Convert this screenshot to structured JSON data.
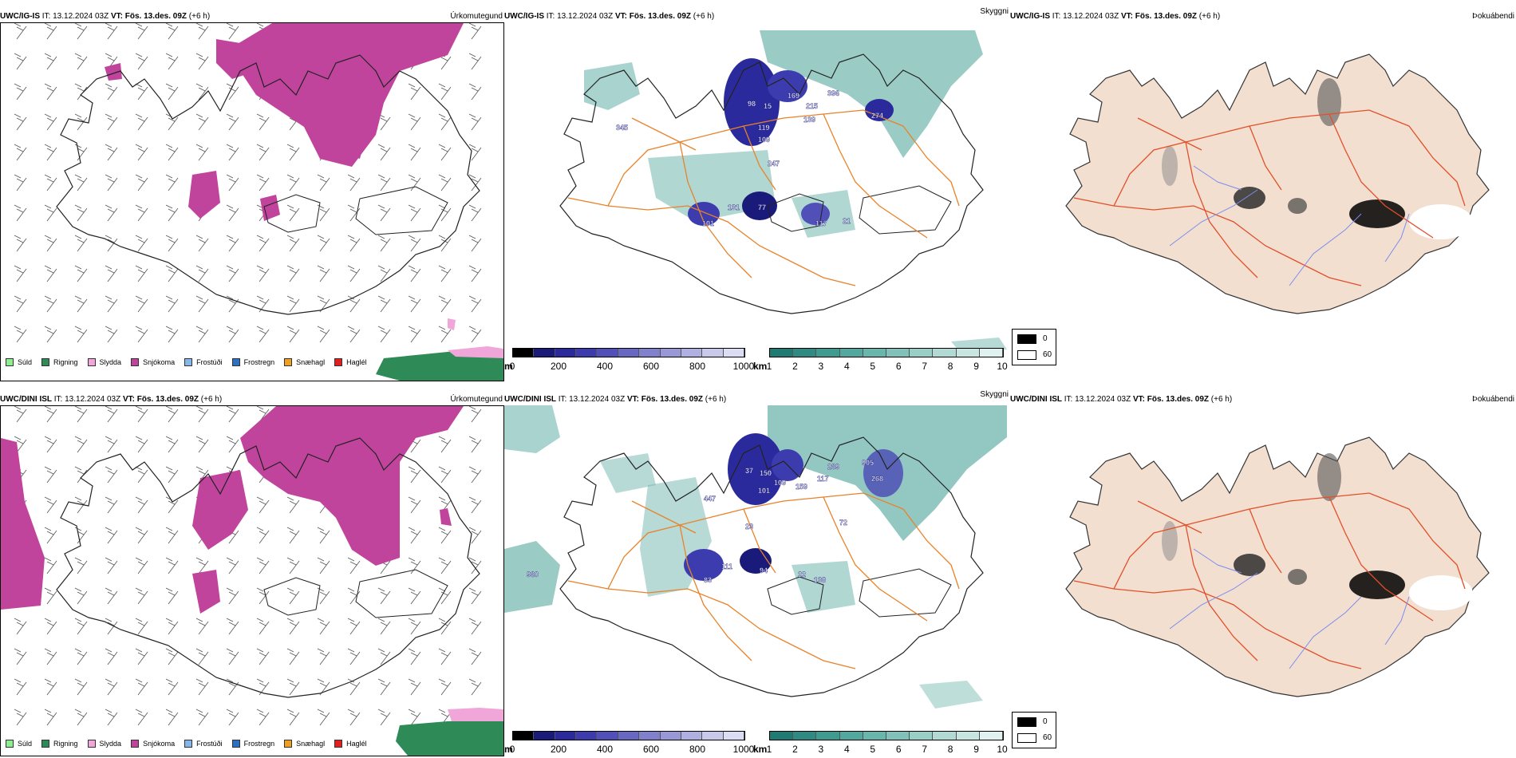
{
  "rows": [
    {
      "model": "UWC/IG-IS",
      "it_label": "IT:",
      "it_value": "13.12.2024 03Z",
      "vt_label": "VT:",
      "vt_value": "Fös. 13.des. 09Z",
      "offset": "(+6 h)"
    },
    {
      "model": "UWC/DINI ISL",
      "it_label": "IT:",
      "it_value": "13.12.2024 03Z",
      "vt_label": "VT:",
      "vt_value": "Fös. 13.des. 09Z",
      "offset": "(+6 h)"
    }
  ],
  "panel_titles": {
    "precip_type": "Úrkomutegund",
    "cloud": "Skyggni",
    "fog": "Þokuábendi"
  },
  "precip_legend": [
    {
      "label": "Súld",
      "color": "#90ee90"
    },
    {
      "label": "Rigning",
      "color": "#2e8b57"
    },
    {
      "label": "Slydda",
      "color": "#f0a6d8"
    },
    {
      "label": "Snjókoma",
      "color": "#c0449c"
    },
    {
      "label": "Frostúði",
      "color": "#87b6e8"
    },
    {
      "label": "Frostregn",
      "color": "#2f6fc0"
    },
    {
      "label": "Snæhagl",
      "color": "#f0a020"
    },
    {
      "label": "Haglél",
      "color": "#e02020"
    }
  ],
  "cloud_base_scale": {
    "unit": "m",
    "ticks": [
      "0",
      "200",
      "400",
      "600",
      "800",
      "1000"
    ],
    "colors": [
      "#000000",
      "#1a1a7a",
      "#2a2a9c",
      "#3c3cae",
      "#5050b8",
      "#6868c2",
      "#8080cc",
      "#9898d6",
      "#b0b0e0",
      "#c8c8ea",
      "#dcdcf4"
    ]
  },
  "visibility_scale": {
    "unit": "km",
    "ticks": [
      "1",
      "2",
      "3",
      "4",
      "5",
      "6",
      "7",
      "8",
      "9",
      "10"
    ],
    "colors": [
      "#1f7a73",
      "#2e8a82",
      "#3f9a90",
      "#52a89e",
      "#68b6ac",
      "#80c2b9",
      "#98cec6",
      "#b0dad3",
      "#c8e6e0",
      "#e0f2ef"
    ]
  },
  "fog_scale": {
    "high": "0",
    "low": "60",
    "high_color": "#000000",
    "low_color": "#ffffff"
  },
  "cloud_labels": [
    [
      "345",
      "98",
      "15",
      "169",
      "215",
      "396",
      "274",
      "139",
      "119",
      "109",
      "247",
      "77",
      "131",
      "101",
      "117",
      "21"
    ],
    [
      "447",
      "37",
      "150",
      "109",
      "101",
      "159",
      "117",
      "269",
      "905",
      "268",
      "72",
      "23",
      "111",
      "83",
      "94",
      "138",
      "960",
      "22"
    ]
  ],
  "colors": {
    "snow": "#c0449c",
    "rain": "#2e8b57",
    "sleet": "#f0a6d8",
    "road": "#e8822a",
    "river": "#7a8cf0",
    "land_fog": "#f3dfd0",
    "teal": "#6fb6ad"
  }
}
